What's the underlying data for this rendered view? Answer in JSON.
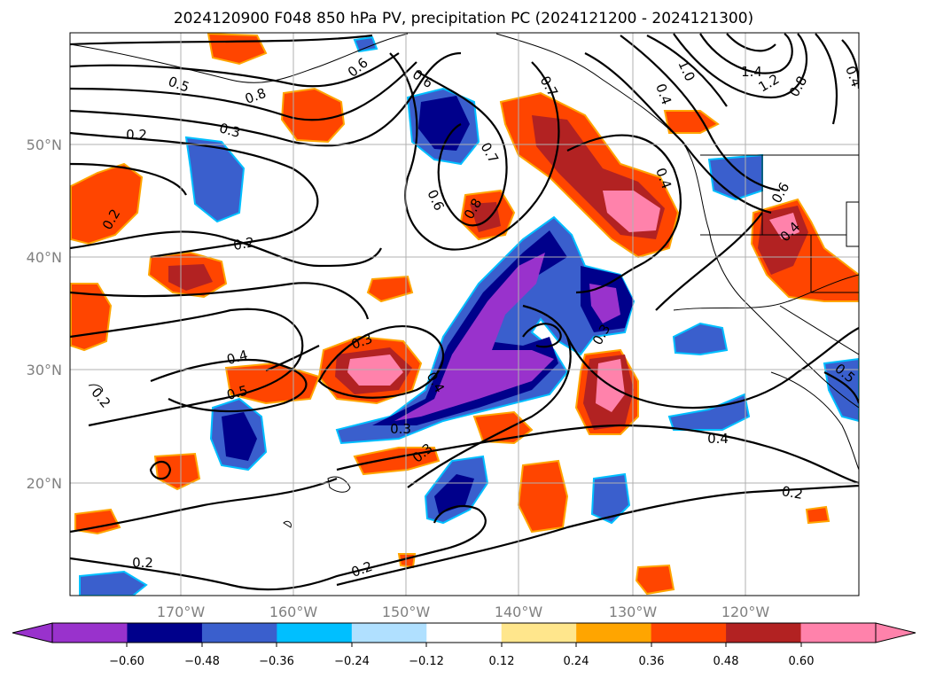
{
  "title": "2024120900 F048 850 hPa PV, precipitation PC (2024121200 - 2024121300)",
  "lat_labels": [
    "50°N",
    "40°N",
    "30°N",
    "20°N"
  ],
  "lon_labels": [
    "170°W",
    "160°W",
    "150°W",
    "140°W",
    "130°W",
    "120°W"
  ],
  "contour_labels": [
    "0.2",
    "0.5",
    "0.3",
    "0.8",
    "0.6",
    "0.7",
    "1.0",
    "1.4",
    "1.2",
    "0.8",
    "0.4",
    "0.2",
    "0.2",
    "0.6",
    "0.8",
    "0.6",
    "0.7",
    "0.4",
    "0.6",
    "0.4",
    "0.3",
    "0.4",
    "0.5",
    "0.2",
    "0.4",
    "0.3",
    "0.4",
    "0.3",
    "0.3",
    "0.4",
    "0.2",
    "0.2",
    "0.2",
    "0.5"
  ],
  "colorbar": {
    "ticks": [
      "−0.60",
      "−0.48",
      "−0.36",
      "−0.24",
      "−0.12",
      "0.12",
      "0.24",
      "0.36",
      "0.48",
      "0.60"
    ],
    "colors": [
      "#9932cc",
      "#00008b",
      "#3a5fcd",
      "#00bfff",
      "#b0e0ff",
      "#ffffff",
      "#ffe68c",
      "#ffa500",
      "#ff4500",
      "#b22222",
      "#ff82ab"
    ]
  }
}
